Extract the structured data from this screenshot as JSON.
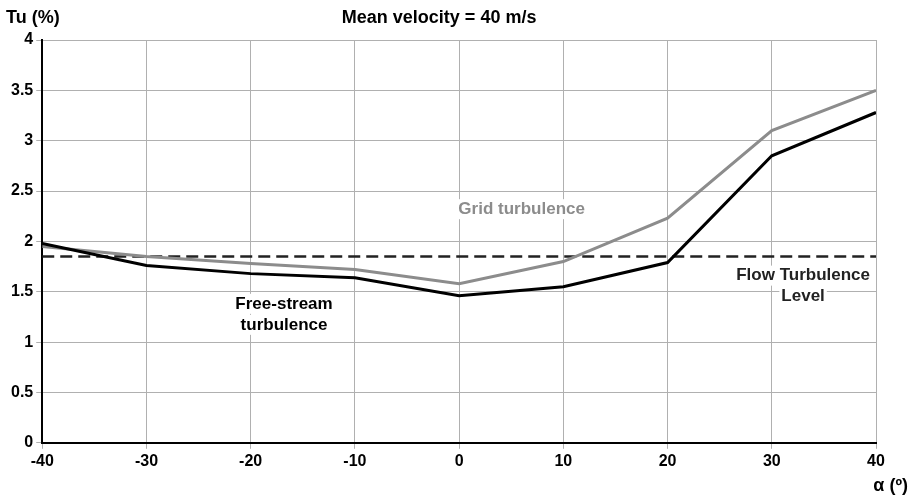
{
  "chart_data": {
    "type": "line",
    "title": "Mean velocity = 40 m/s",
    "x_label": "α (º)",
    "y_label": "Tu (%)",
    "x": [
      -40,
      -30,
      -20,
      -10,
      0,
      10,
      20,
      30,
      40
    ],
    "series": [
      {
        "name": "Free-stream turbulence",
        "color": "#000000",
        "line_style": "solid",
        "marker": "none",
        "values": [
          1.98,
          1.76,
          1.68,
          1.64,
          1.46,
          1.55,
          1.79,
          2.85,
          3.28
        ]
      },
      {
        "name": "Grid turbulence",
        "color": "#8c8c8c",
        "line_style": "solid",
        "marker": "none",
        "values": [
          1.95,
          1.85,
          1.78,
          1.72,
          1.58,
          1.8,
          2.23,
          3.1,
          3.5
        ]
      },
      {
        "name": "Flow Turbulence Level",
        "color": "#222222",
        "line_style": "dashed",
        "marker": "none",
        "values": [
          1.85,
          1.85,
          1.85,
          1.85,
          1.85,
          1.85,
          1.85,
          1.85,
          1.85
        ]
      }
    ],
    "xlim": [
      -40,
      40
    ],
    "ylim": [
      0,
      4
    ],
    "xticks": [
      -40,
      -30,
      -20,
      -10,
      0,
      10,
      20,
      30,
      40
    ],
    "yticks": [
      0,
      0.5,
      1,
      1.5,
      2,
      2.5,
      3,
      3.5,
      4
    ],
    "grid": true
  }
}
